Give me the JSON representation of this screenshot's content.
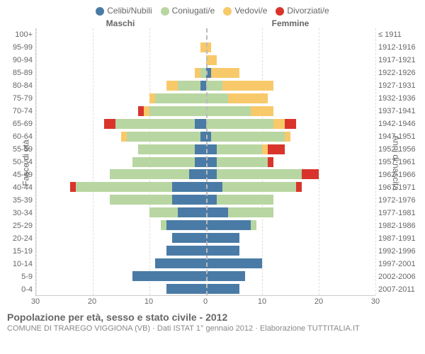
{
  "legend": [
    {
      "label": "Celibi/Nubili",
      "color": "#4a7ba6"
    },
    {
      "label": "Coniugati/e",
      "color": "#b8d6a1"
    },
    {
      "label": "Vedovi/e",
      "color": "#f8c96a"
    },
    {
      "label": "Divorziati/e",
      "color": "#d9342b"
    }
  ],
  "colors": {
    "celibi": "#4a7ba6",
    "coniugati": "#b8d6a1",
    "vedovi": "#f8c96a",
    "divorziati": "#d9342b",
    "grid": "#dddddd",
    "centerline": "#bbbbbb",
    "text": "#666666",
    "background": "#ffffff"
  },
  "headers": {
    "left": "Maschi",
    "right": "Femmine"
  },
  "axis_labels": {
    "left": "Fasce di età",
    "right": "Anni di nascita"
  },
  "x": {
    "max": 30,
    "ticks": [
      30,
      20,
      10,
      0,
      10,
      20,
      30
    ]
  },
  "rows": [
    {
      "age": "100+",
      "year": "≤ 1911",
      "m": [
        0,
        0,
        0,
        0
      ],
      "f": [
        0,
        0,
        0,
        0
      ]
    },
    {
      "age": "95-99",
      "year": "1912-1916",
      "m": [
        0,
        0,
        1,
        0
      ],
      "f": [
        0,
        0,
        1,
        0
      ]
    },
    {
      "age": "90-94",
      "year": "1917-1921",
      "m": [
        0,
        0,
        0,
        0
      ],
      "f": [
        0,
        0,
        2,
        0
      ]
    },
    {
      "age": "85-89",
      "year": "1922-1926",
      "m": [
        0,
        1,
        1,
        0
      ],
      "f": [
        1,
        0,
        5,
        0
      ]
    },
    {
      "age": "80-84",
      "year": "1927-1931",
      "m": [
        1,
        4,
        2,
        0
      ],
      "f": [
        0,
        3,
        9,
        0
      ]
    },
    {
      "age": "75-79",
      "year": "1932-1936",
      "m": [
        0,
        9,
        1,
        0
      ],
      "f": [
        0,
        4,
        7,
        0
      ]
    },
    {
      "age": "70-74",
      "year": "1937-1941",
      "m": [
        0,
        10,
        1,
        1
      ],
      "f": [
        0,
        8,
        4,
        0
      ]
    },
    {
      "age": "65-69",
      "year": "1942-1946",
      "m": [
        2,
        14,
        0,
        2
      ],
      "f": [
        0,
        12,
        2,
        2
      ]
    },
    {
      "age": "60-64",
      "year": "1947-1951",
      "m": [
        1,
        13,
        1,
        0
      ],
      "f": [
        1,
        13,
        1,
        0
      ]
    },
    {
      "age": "55-59",
      "year": "1952-1956",
      "m": [
        2,
        10,
        0,
        0
      ],
      "f": [
        2,
        8,
        1,
        3
      ]
    },
    {
      "age": "50-54",
      "year": "1957-1961",
      "m": [
        2,
        11,
        0,
        0
      ],
      "f": [
        2,
        9,
        0,
        1
      ]
    },
    {
      "age": "45-49",
      "year": "1962-1966",
      "m": [
        3,
        14,
        0,
        0
      ],
      "f": [
        2,
        15,
        0,
        3
      ]
    },
    {
      "age": "40-44",
      "year": "1967-1971",
      "m": [
        6,
        17,
        0,
        1
      ],
      "f": [
        3,
        13,
        0,
        1
      ]
    },
    {
      "age": "35-39",
      "year": "1972-1976",
      "m": [
        6,
        11,
        0,
        0
      ],
      "f": [
        2,
        10,
        0,
        0
      ]
    },
    {
      "age": "30-34",
      "year": "1977-1981",
      "m": [
        5,
        5,
        0,
        0
      ],
      "f": [
        4,
        8,
        0,
        0
      ]
    },
    {
      "age": "25-29",
      "year": "1982-1986",
      "m": [
        7,
        1,
        0,
        0
      ],
      "f": [
        8,
        1,
        0,
        0
      ]
    },
    {
      "age": "20-24",
      "year": "1987-1991",
      "m": [
        6,
        0,
        0,
        0
      ],
      "f": [
        6,
        0,
        0,
        0
      ]
    },
    {
      "age": "15-19",
      "year": "1992-1996",
      "m": [
        7,
        0,
        0,
        0
      ],
      "f": [
        6,
        0,
        0,
        0
      ]
    },
    {
      "age": "10-14",
      "year": "1997-2001",
      "m": [
        9,
        0,
        0,
        0
      ],
      "f": [
        10,
        0,
        0,
        0
      ]
    },
    {
      "age": "5-9",
      "year": "2002-2006",
      "m": [
        13,
        0,
        0,
        0
      ],
      "f": [
        7,
        0,
        0,
        0
      ]
    },
    {
      "age": "0-4",
      "year": "2007-2011",
      "m": [
        7,
        0,
        0,
        0
      ],
      "f": [
        6,
        0,
        0,
        0
      ]
    }
  ],
  "footer": {
    "title": "Popolazione per età, sesso e stato civile - 2012",
    "subtitle": "COMUNE DI TRAREGO VIGGIONA (VB) · Dati ISTAT 1° gennaio 2012 · Elaborazione TUTTITALIA.IT"
  },
  "typography": {
    "legend_fontsize": 12,
    "axis_label_fontsize": 11,
    "title_fontsize": 14,
    "font_family": "Arial"
  }
}
